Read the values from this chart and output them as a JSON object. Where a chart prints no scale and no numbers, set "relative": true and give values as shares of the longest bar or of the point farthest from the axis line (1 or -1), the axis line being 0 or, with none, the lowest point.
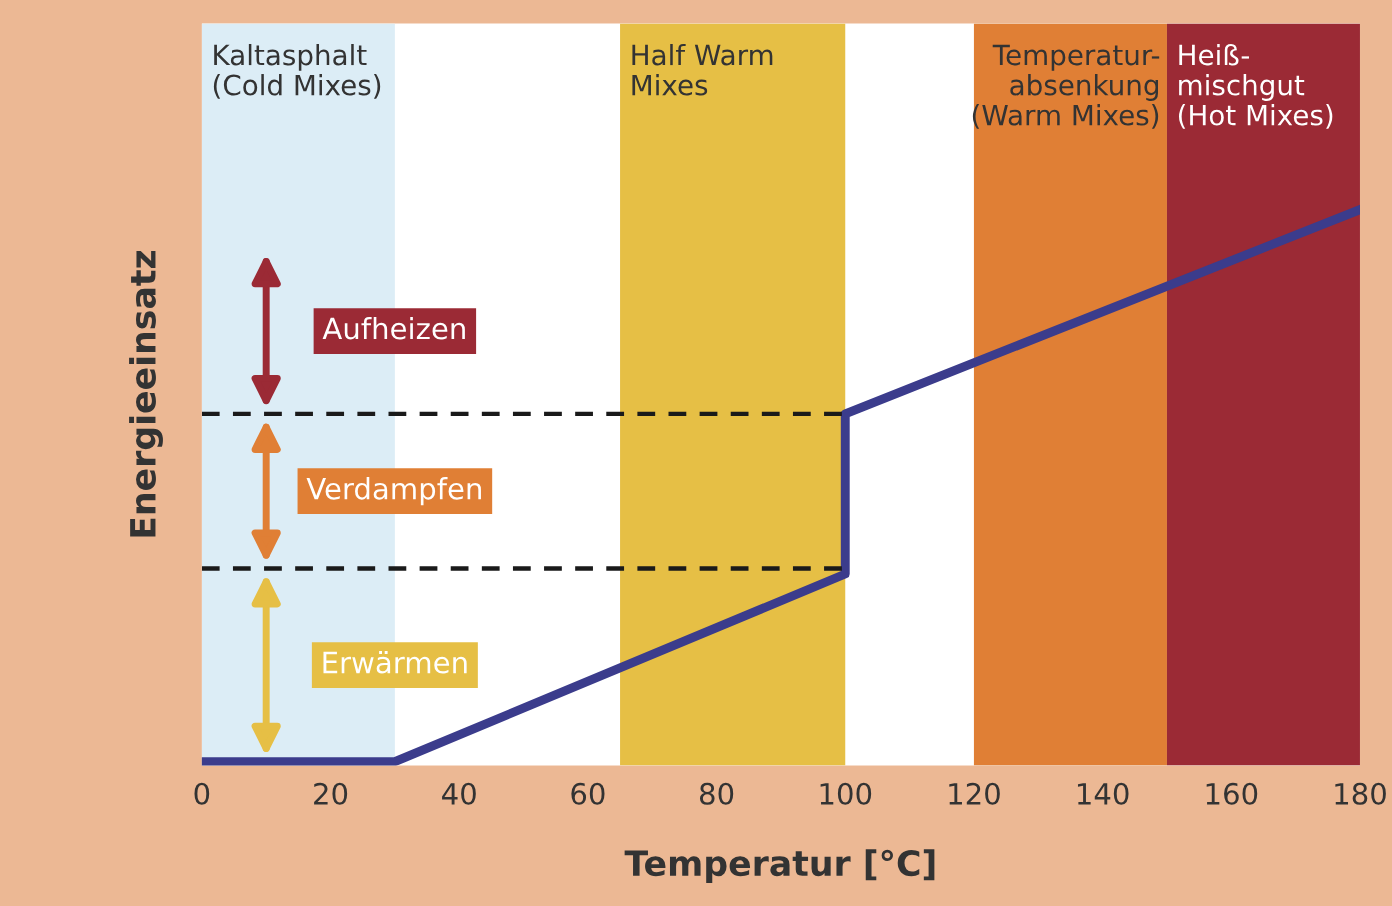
{
  "chart_data": {
    "type": "line",
    "xlabel": "Temperatur [°C]",
    "ylabel": "Energieeinsatz",
    "relative": true,
    "x": [
      0,
      30,
      100,
      100,
      180
    ],
    "series": [
      {
        "color": "#3b3c8c",
        "values": [
          0,
          0,
          0.34,
          0.63,
          1
        ]
      }
    ],
    "xlim": [
      0,
      180
    ],
    "xticks": [
      0,
      20,
      40,
      60,
      80,
      100,
      120,
      140,
      160,
      180
    ],
    "tick_labels": "x",
    "grid": false,
    "legend": false,
    "marker": "none",
    "line_style": "solid",
    "ref_lines": [
      {
        "axis": "y",
        "value": 0.35,
        "color": "#1a1a1a",
        "line_style": "dashed"
      },
      {
        "axis": "y",
        "value": 0.63,
        "color": "#1a1a1a",
        "line_style": "dashed"
      }
    ],
    "bands": [
      {
        "axis": "x",
        "from": 0,
        "to": 30,
        "label": "Kaltasphalt\n(Cold Mixes)",
        "color": "#dcedf6"
      },
      {
        "axis": "x",
        "from": 65,
        "to": 100,
        "label": "Half Warm\nMixes",
        "color": "#e6bf45"
      },
      {
        "axis": "x",
        "from": 120,
        "to": 150,
        "label": "Temperatur-\nabsenkung\n(Warm Mixes)",
        "color": "#e07f35"
      },
      {
        "axis": "x",
        "from": 150,
        "to": 180,
        "label": "Heiß-\nmischgut\n(Hot Mixes)",
        "color": "#9b2a35"
      }
    ],
    "annotations": [
      "Aufheizen",
      "Verdampfen",
      "Erwärmen"
    ]
  }
}
